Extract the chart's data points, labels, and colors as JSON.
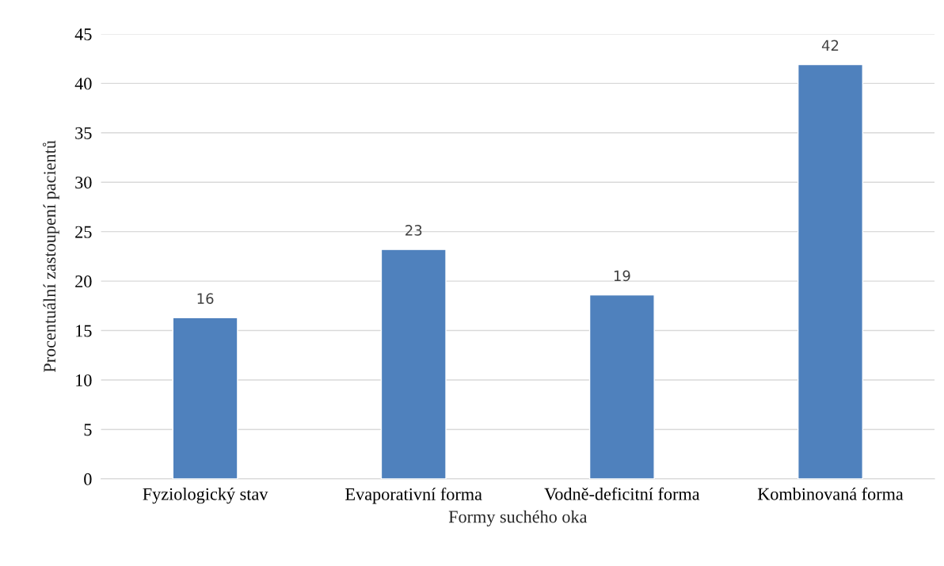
{
  "chart_data": {
    "type": "bar",
    "xlabel": "Formy suchého oka",
    "ylabel": "Procentuální zastoupení pacientů",
    "categories": [
      "Fyziologický stav",
      "Evaporativní forma",
      "Vodně-deficitní forma",
      "Kombinovaná forma"
    ],
    "values": [
      16.3,
      23.2,
      18.6,
      41.9
    ],
    "value_labels": [
      "16",
      "23",
      "19",
      "42"
    ],
    "color": "#4f81bd",
    "ylim": [
      0,
      45
    ],
    "yticks": [
      0,
      5,
      10,
      15,
      20,
      25,
      30,
      35,
      40,
      45
    ],
    "grid": "y",
    "legend": false
  }
}
